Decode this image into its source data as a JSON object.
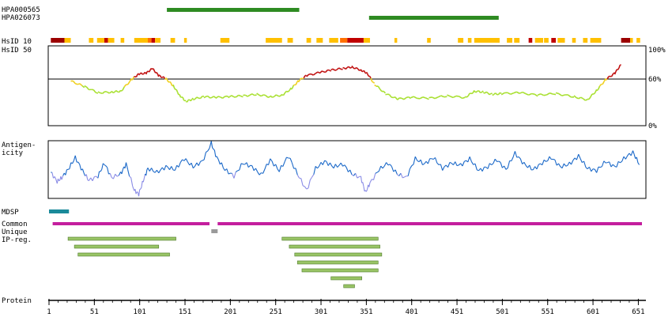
{
  "chart_data": {
    "type": "protein-feature-track",
    "sequence_length": 655,
    "antibodies": [
      {
        "name": "HPA000565",
        "start": 131,
        "end": 277,
        "color": "#2e8b22"
      },
      {
        "name": "HPA026073",
        "start": 354,
        "end": 497,
        "color": "#2e8b22"
      }
    ],
    "hsid": {
      "label10": "HsID 10",
      "label50": "HsID 50",
      "ytick_labels": [
        "100%",
        "60%",
        "0%"
      ],
      "ylim": [
        0,
        100
      ],
      "threshold": 60,
      "x": [
        25,
        40,
        55,
        70,
        80,
        92,
        100,
        108,
        115,
        122,
        130,
        138,
        145,
        152,
        160,
        172,
        185,
        200,
        215,
        230,
        245,
        258,
        268,
        276,
        285,
        300,
        312,
        325,
        335,
        345,
        352,
        360,
        372,
        385,
        400,
        420,
        440,
        460,
        470,
        480,
        490,
        500,
        520,
        540,
        560,
        580,
        595,
        605,
        615,
        625,
        632
      ],
      "values": [
        56,
        49,
        41,
        42,
        43,
        58,
        65,
        66,
        72,
        63,
        59,
        50,
        38,
        30,
        33,
        36,
        35,
        36,
        37,
        39,
        36,
        38,
        46,
        56,
        63,
        67,
        70,
        72,
        74,
        70,
        66,
        52,
        40,
        33,
        35,
        34,
        37,
        35,
        43,
        42,
        39,
        40,
        41,
        38,
        40,
        36,
        32,
        44,
        58,
        66,
        77
      ],
      "heat_bar": [
        {
          "start": 3,
          "end": 18,
          "color": "#9b0000"
        },
        {
          "start": 18,
          "end": 25,
          "color": "#ffc000"
        },
        {
          "start": 45,
          "end": 50,
          "color": "#ffc000"
        },
        {
          "start": 54,
          "end": 62,
          "color": "#ffc000"
        },
        {
          "start": 62,
          "end": 66,
          "color": "#c00000"
        },
        {
          "start": 66,
          "end": 73,
          "color": "#ffc000"
        },
        {
          "start": 80,
          "end": 84,
          "color": "#ffc000"
        },
        {
          "start": 95,
          "end": 110,
          "color": "#ffc000"
        },
        {
          "start": 110,
          "end": 114,
          "color": "#ff7000"
        },
        {
          "start": 114,
          "end": 118,
          "color": "#c00000"
        },
        {
          "start": 118,
          "end": 124,
          "color": "#ffc000"
        },
        {
          "start": 135,
          "end": 140,
          "color": "#ffc000"
        },
        {
          "start": 150,
          "end": 153,
          "color": "#ffc000"
        },
        {
          "start": 190,
          "end": 200,
          "color": "#ffc000"
        },
        {
          "start": 240,
          "end": 258,
          "color": "#ffc000"
        },
        {
          "start": 264,
          "end": 270,
          "color": "#ffc000"
        },
        {
          "start": 285,
          "end": 290,
          "color": "#ffc000"
        },
        {
          "start": 296,
          "end": 303,
          "color": "#ffc000"
        },
        {
          "start": 310,
          "end": 320,
          "color": "#ffc000"
        },
        {
          "start": 322,
          "end": 330,
          "color": "#ff7000"
        },
        {
          "start": 330,
          "end": 348,
          "color": "#c00000"
        },
        {
          "start": 348,
          "end": 355,
          "color": "#ffc000"
        },
        {
          "start": 382,
          "end": 385,
          "color": "#ffc000"
        },
        {
          "start": 418,
          "end": 422,
          "color": "#ffc000"
        },
        {
          "start": 452,
          "end": 458,
          "color": "#ffc000"
        },
        {
          "start": 463,
          "end": 467,
          "color": "#ffc000"
        },
        {
          "start": 470,
          "end": 498,
          "color": "#ffc000"
        },
        {
          "start": 506,
          "end": 512,
          "color": "#ffc000"
        },
        {
          "start": 514,
          "end": 520,
          "color": "#ffc000"
        },
        {
          "start": 530,
          "end": 534,
          "color": "#c00000"
        },
        {
          "start": 537,
          "end": 546,
          "color": "#ffc000"
        },
        {
          "start": 547,
          "end": 552,
          "color": "#ffc000"
        },
        {
          "start": 555,
          "end": 560,
          "color": "#c00000"
        },
        {
          "start": 562,
          "end": 570,
          "color": "#ffc000"
        },
        {
          "start": 578,
          "end": 582,
          "color": "#ffc000"
        },
        {
          "start": 590,
          "end": 595,
          "color": "#ffc000"
        },
        {
          "start": 598,
          "end": 610,
          "color": "#ffc000"
        },
        {
          "start": 632,
          "end": 642,
          "color": "#9b0000"
        },
        {
          "start": 642,
          "end": 645,
          "color": "#ffc000"
        },
        {
          "start": 649,
          "end": 653,
          "color": "#ffc000"
        }
      ]
    },
    "antigenicity": {
      "label_line1": "Antigen-",
      "label_line2": "icity",
      "x": [
        3,
        10,
        15,
        22,
        30,
        38,
        45,
        55,
        62,
        70,
        80,
        86,
        95,
        100,
        105,
        110,
        120,
        130,
        140,
        150,
        160,
        170,
        180,
        186,
        195,
        205,
        215,
        225,
        235,
        245,
        255,
        265,
        275,
        285,
        295,
        305,
        315,
        325,
        335,
        345,
        350,
        355,
        365,
        375,
        385,
        395,
        405,
        415,
        425,
        435,
        445,
        455,
        465,
        475,
        485,
        495,
        505,
        515,
        525,
        535,
        545,
        555,
        565,
        575,
        585,
        595,
        605,
        615,
        625,
        635,
        645,
        652
      ],
      "values": [
        0.45,
        0.28,
        0.35,
        0.5,
        0.72,
        0.48,
        0.3,
        0.38,
        0.62,
        0.35,
        0.42,
        0.6,
        0.12,
        0.05,
        0.3,
        0.52,
        0.45,
        0.55,
        0.5,
        0.7,
        0.55,
        0.65,
        0.98,
        0.72,
        0.5,
        0.38,
        0.62,
        0.55,
        0.4,
        0.68,
        0.48,
        0.75,
        0.42,
        0.12,
        0.52,
        0.65,
        0.55,
        0.6,
        0.42,
        0.35,
        0.08,
        0.25,
        0.5,
        0.62,
        0.42,
        0.35,
        0.7,
        0.6,
        0.72,
        0.52,
        0.62,
        0.58,
        0.7,
        0.48,
        0.55,
        0.68,
        0.5,
        0.8,
        0.6,
        0.5,
        0.62,
        0.72,
        0.55,
        0.6,
        0.75,
        0.52,
        0.48,
        0.65,
        0.55,
        0.7,
        0.82,
        0.6
      ]
    },
    "mdsp": {
      "label": "MDSP",
      "segments": [
        {
          "start": 1,
          "end": 23,
          "color": "#1a8a9a"
        }
      ]
    },
    "common": {
      "label": "Common",
      "segments": [
        {
          "start": 5,
          "end": 178,
          "color": "#c41f9e"
        },
        {
          "start": 187,
          "end": 655,
          "color": "#c41f9e"
        }
      ]
    },
    "unique": {
      "label": "Unique",
      "segments": [
        {
          "start": 180,
          "end": 187,
          "color": "#9a9a9a"
        }
      ]
    },
    "ip_reg": {
      "label": "IP-reg.",
      "color": "#99c466",
      "segments": [
        {
          "start": 22,
          "end": 141
        },
        {
          "start": 29,
          "end": 122
        },
        {
          "start": 33,
          "end": 134
        },
        {
          "start": 258,
          "end": 364
        },
        {
          "start": 266,
          "end": 366
        },
        {
          "start": 272,
          "end": 368
        },
        {
          "start": 275,
          "end": 364
        },
        {
          "start": 280,
          "end": 364
        },
        {
          "start": 312,
          "end": 346
        },
        {
          "start": 326,
          "end": 338
        }
      ]
    },
    "protein": {
      "label": "Protein",
      "ticks": [
        1,
        51,
        101,
        151,
        201,
        251,
        301,
        351,
        401,
        451,
        501,
        551,
        601,
        651
      ]
    }
  }
}
